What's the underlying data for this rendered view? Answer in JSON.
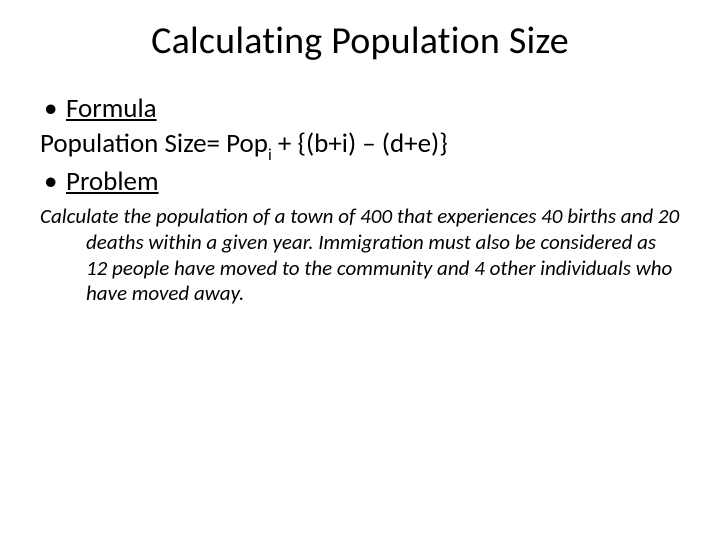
{
  "slide": {
    "title": "Calculating Population Size",
    "title_fontsize": 38,
    "title_color": "#000000",
    "background_color": "#ffffff",
    "body_fontsize": 27,
    "body_color": "#000000",
    "bullet1_label": "Formula",
    "formula_text": "Population Size= Pop",
    "formula_sub": "i",
    "formula_tail": "  + {(b+i) – (d+e)}",
    "bullet2_label": "Problem",
    "problem_fontsize": 21,
    "problem_text": "Calculate the population of a town of 400 that experiences 40 births and 20 deaths within a given year. Immigration must also be considered as 12 people have moved to the community and 4 other individuals who have moved away."
  }
}
